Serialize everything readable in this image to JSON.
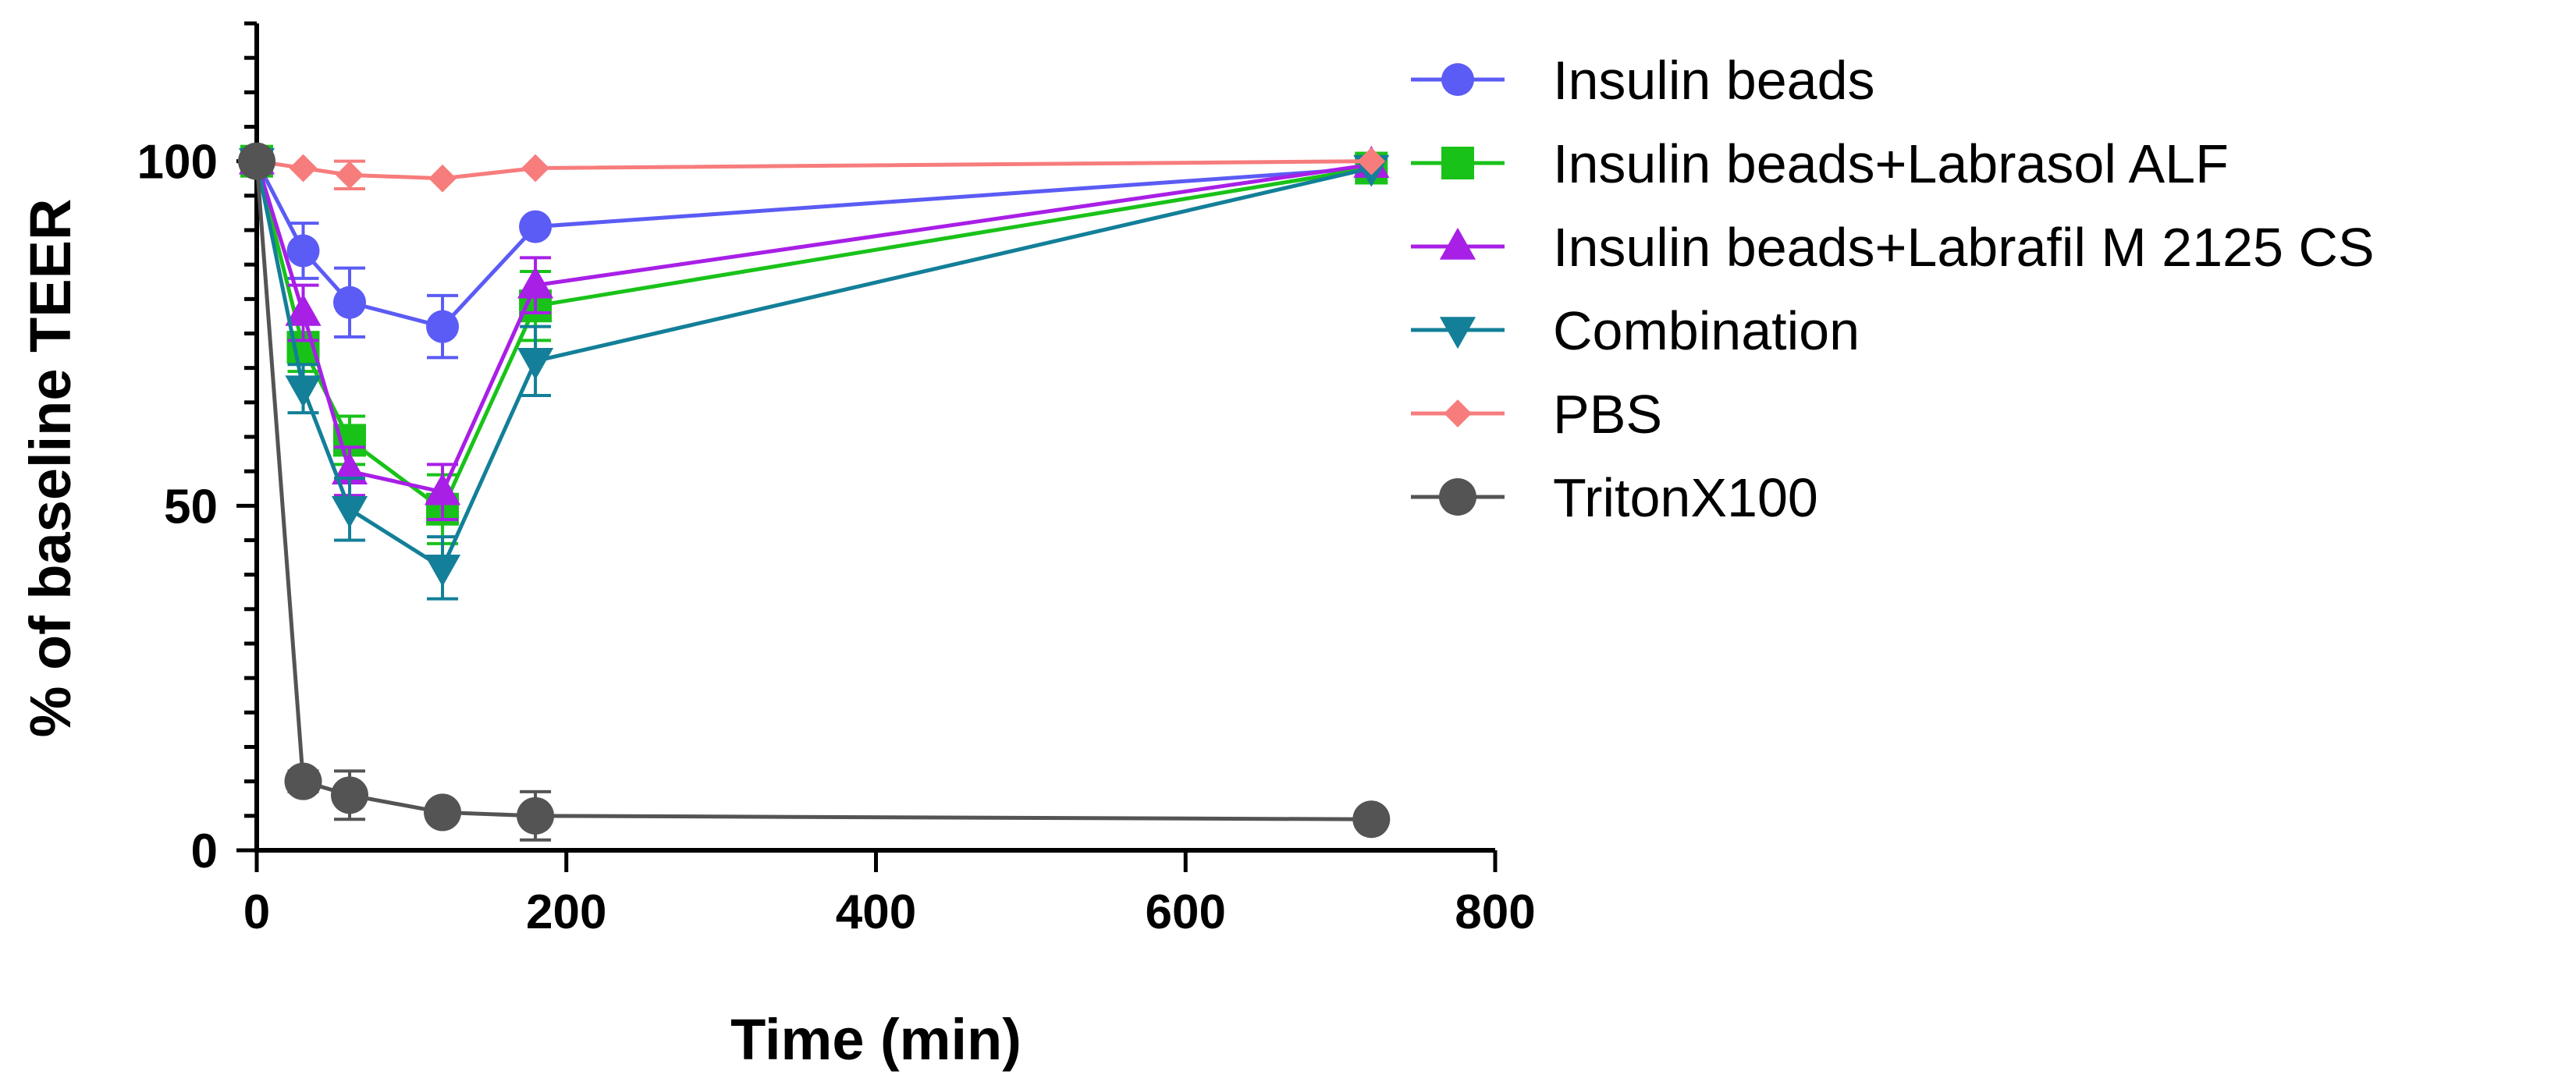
{
  "chart_data": {
    "type": "line",
    "title": "",
    "xlabel": "Time (min)",
    "ylabel": "% of baseline TEER",
    "xlim": [
      0,
      800
    ],
    "ylim": [
      0,
      120
    ],
    "xticks": [
      0,
      200,
      400,
      600,
      800
    ],
    "xtick_labels": [
      "0",
      "200",
      "400",
      "600",
      "800"
    ],
    "yticks": [
      0,
      50,
      100
    ],
    "ytick_labels": [
      "0",
      "50",
      "100"
    ],
    "y_minor_step": 5,
    "grid": false,
    "legend_position": "right",
    "x": [
      0,
      30,
      60,
      120,
      180,
      720
    ],
    "series": [
      {
        "name": "Insulin beads",
        "color": "#5b5bf5",
        "marker": "circle",
        "values": [
          100,
          87,
          79.5,
          76,
          90.5,
          99
        ],
        "errors": [
          0,
          4,
          5,
          4.5,
          0,
          0
        ]
      },
      {
        "name": "Insulin beads+Labrasol ALF",
        "color": "#19c219",
        "marker": "square",
        "values": [
          100,
          73,
          59.5,
          49.5,
          79,
          99
        ],
        "errors": [
          0,
          3.5,
          3.5,
          5,
          5,
          0
        ]
      },
      {
        "name": "Insulin beads+Labrafil M 2125 CS",
        "color": "#a81fe6",
        "marker": "triangle-up",
        "values": [
          100,
          78,
          55,
          52,
          82,
          99.5
        ],
        "errors": [
          0,
          4,
          3.5,
          4,
          4,
          0
        ]
      },
      {
        "name": "Combination",
        "color": "#137f98",
        "marker": "triangle-down",
        "values": [
          100,
          67,
          49.5,
          41,
          71,
          99
        ],
        "errors": [
          0,
          3.5,
          4.5,
          4.5,
          5,
          0
        ]
      },
      {
        "name": "PBS",
        "color": "#f77c7c",
        "marker": "diamond",
        "values": [
          100,
          99,
          98,
          97.5,
          99,
          100
        ],
        "errors": [
          0,
          0,
          2,
          0,
          0,
          0
        ]
      },
      {
        "name": "TritonX100",
        "color": "#545454",
        "marker": "circle",
        "values": [
          100,
          10,
          8,
          5.5,
          5,
          4.5
        ],
        "errors": [
          0,
          1.5,
          3.5,
          1,
          3.5,
          0
        ]
      }
    ]
  }
}
